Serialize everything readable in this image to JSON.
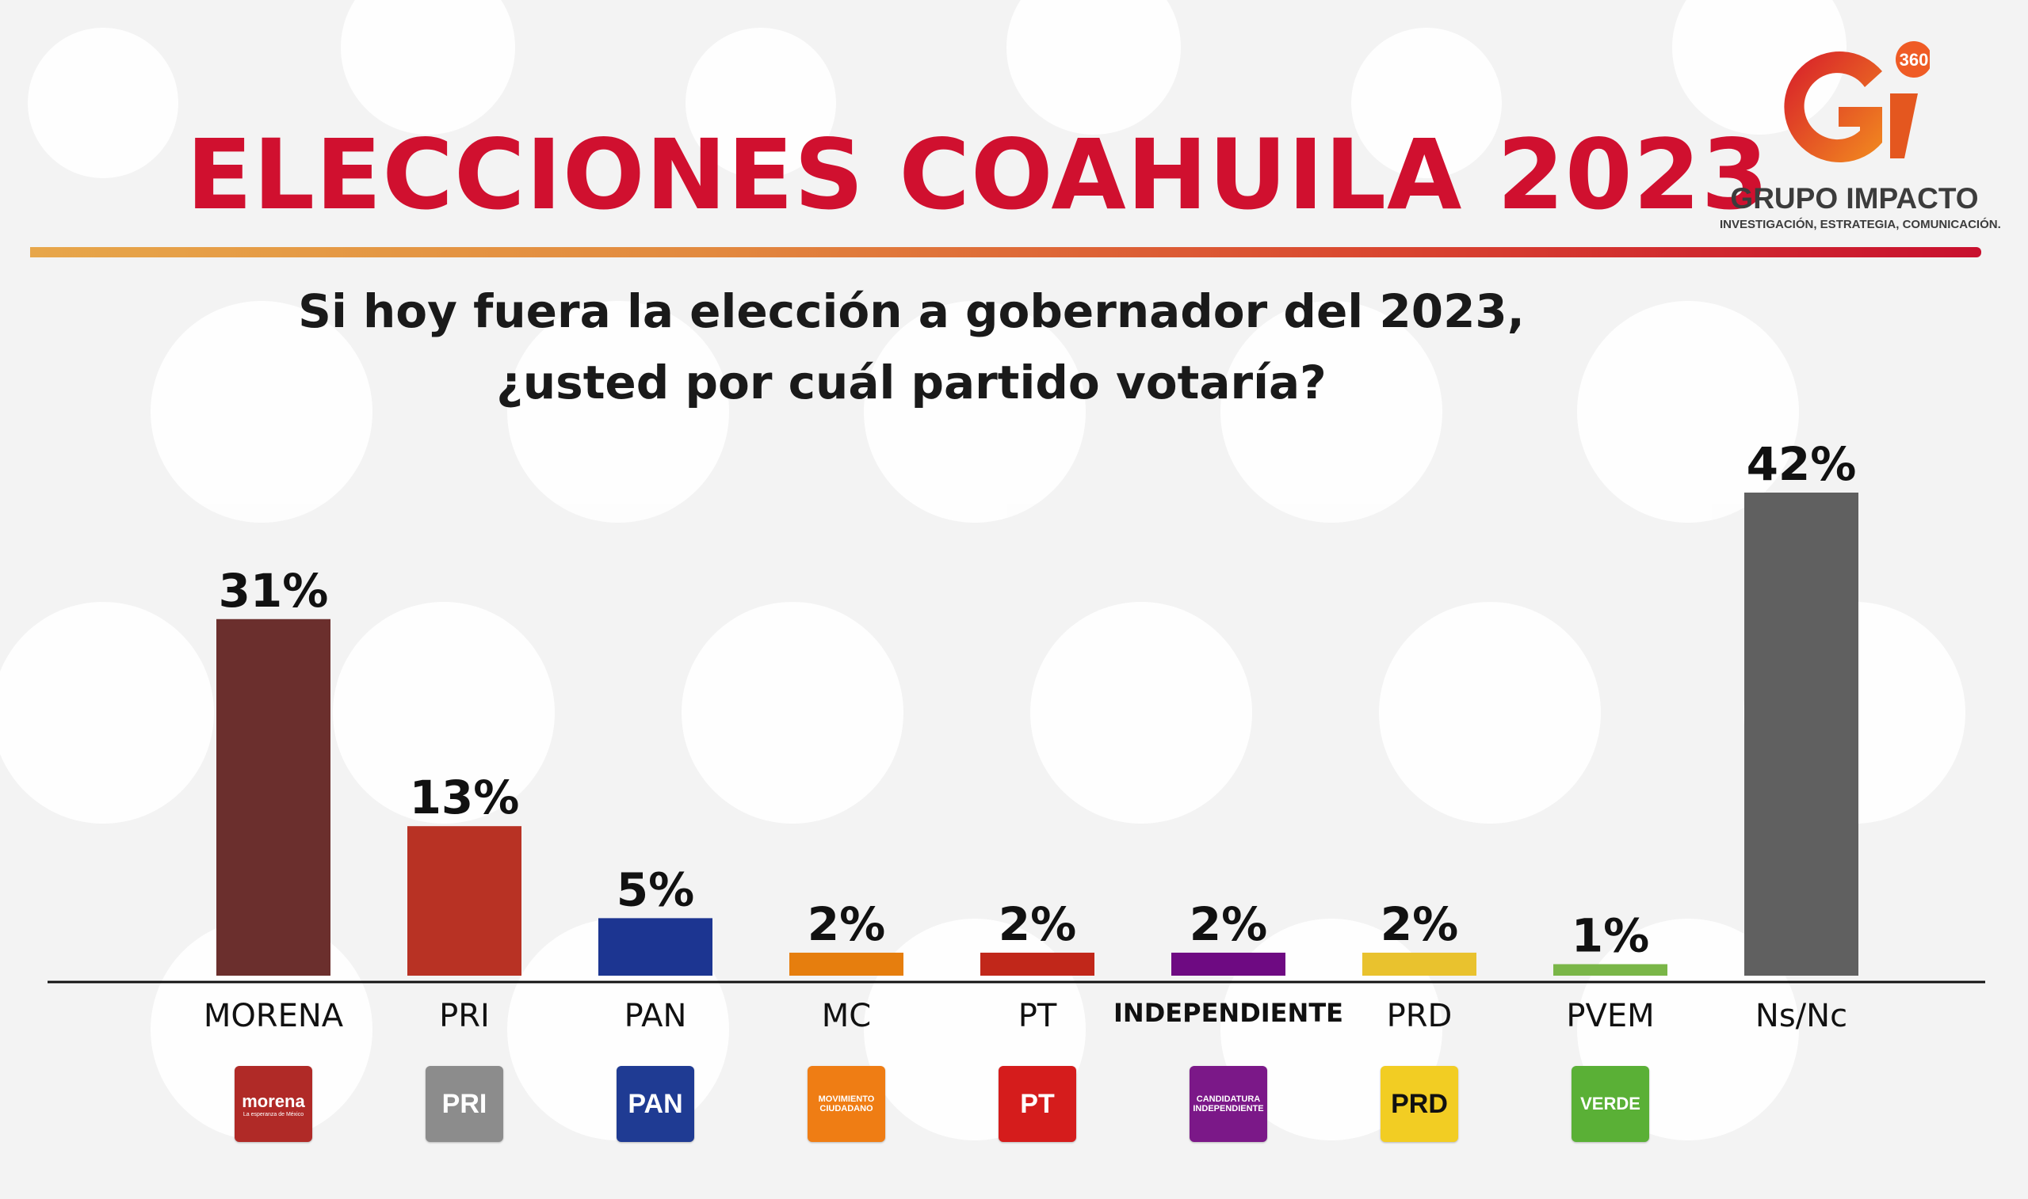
{
  "header": {
    "title": "ELECCIONES COAHUILA 2023",
    "question_line1": "Si hoy fuera la elección a gobernador del 2023,",
    "question_line2": "¿usted por cuál partido votaría?"
  },
  "brand": {
    "mark": "Gi",
    "badge": "360",
    "name": "GRUPO IMPACTO",
    "tagline": "INVESTIGACIÓN, ESTRATEGIA, COMUNICACIÓN."
  },
  "colors": {
    "title": "#d0102f",
    "accent_gradient": [
      "#e7a64a",
      "#c8102e"
    ]
  },
  "chart_data": {
    "type": "bar",
    "categories": [
      "MORENA",
      "PRI",
      "PAN",
      "MC",
      "PT",
      "INDEPENDIENTE",
      "PRD",
      "PVEM",
      "Ns/Nc"
    ],
    "values": [
      31,
      13,
      5,
      2,
      2,
      2,
      2,
      1,
      42
    ],
    "value_labels": [
      "31%",
      "13%",
      "5%",
      "2%",
      "2%",
      "2%",
      "2%",
      "1%",
      "42%"
    ],
    "colors": [
      "#6b2f2d",
      "#b83224",
      "#1c3591",
      "#e67e0e",
      "#c1271a",
      "#6e0a82",
      "#e9c22e",
      "#7ab648",
      "#606060"
    ],
    "ylim": [
      0,
      42
    ],
    "title": "",
    "xlabel": "",
    "ylabel": "",
    "grid": false,
    "legend": "none"
  },
  "party_logos": [
    {
      "icon": "morena-logo",
      "text": "morena",
      "subtext": "La esperanza de México",
      "color": "#b02a27"
    },
    {
      "icon": "pri-logo",
      "text": "PRI",
      "subtext": "",
      "color": "#8c8c8c"
    },
    {
      "icon": "pan-logo",
      "text": "PAN",
      "subtext": "",
      "color": "#1f3b93"
    },
    {
      "icon": "mc-logo",
      "text": "MOVIMIENTO",
      "subtext": "CIUDADANO",
      "color": "#ef7d14"
    },
    {
      "icon": "pt-logo",
      "text": "PT",
      "subtext": "",
      "color": "#d51c1c"
    },
    {
      "icon": "independiente-logo",
      "text": "CANDIDATURA",
      "subtext": "INDEPENDIENTE",
      "color": "#7b1888"
    },
    {
      "icon": "prd-logo",
      "text": "PRD",
      "subtext": "",
      "color": "#f2cd23"
    },
    {
      "icon": "verde-logo",
      "text": "VERDE",
      "subtext": "",
      "color": "#5ab036"
    }
  ]
}
